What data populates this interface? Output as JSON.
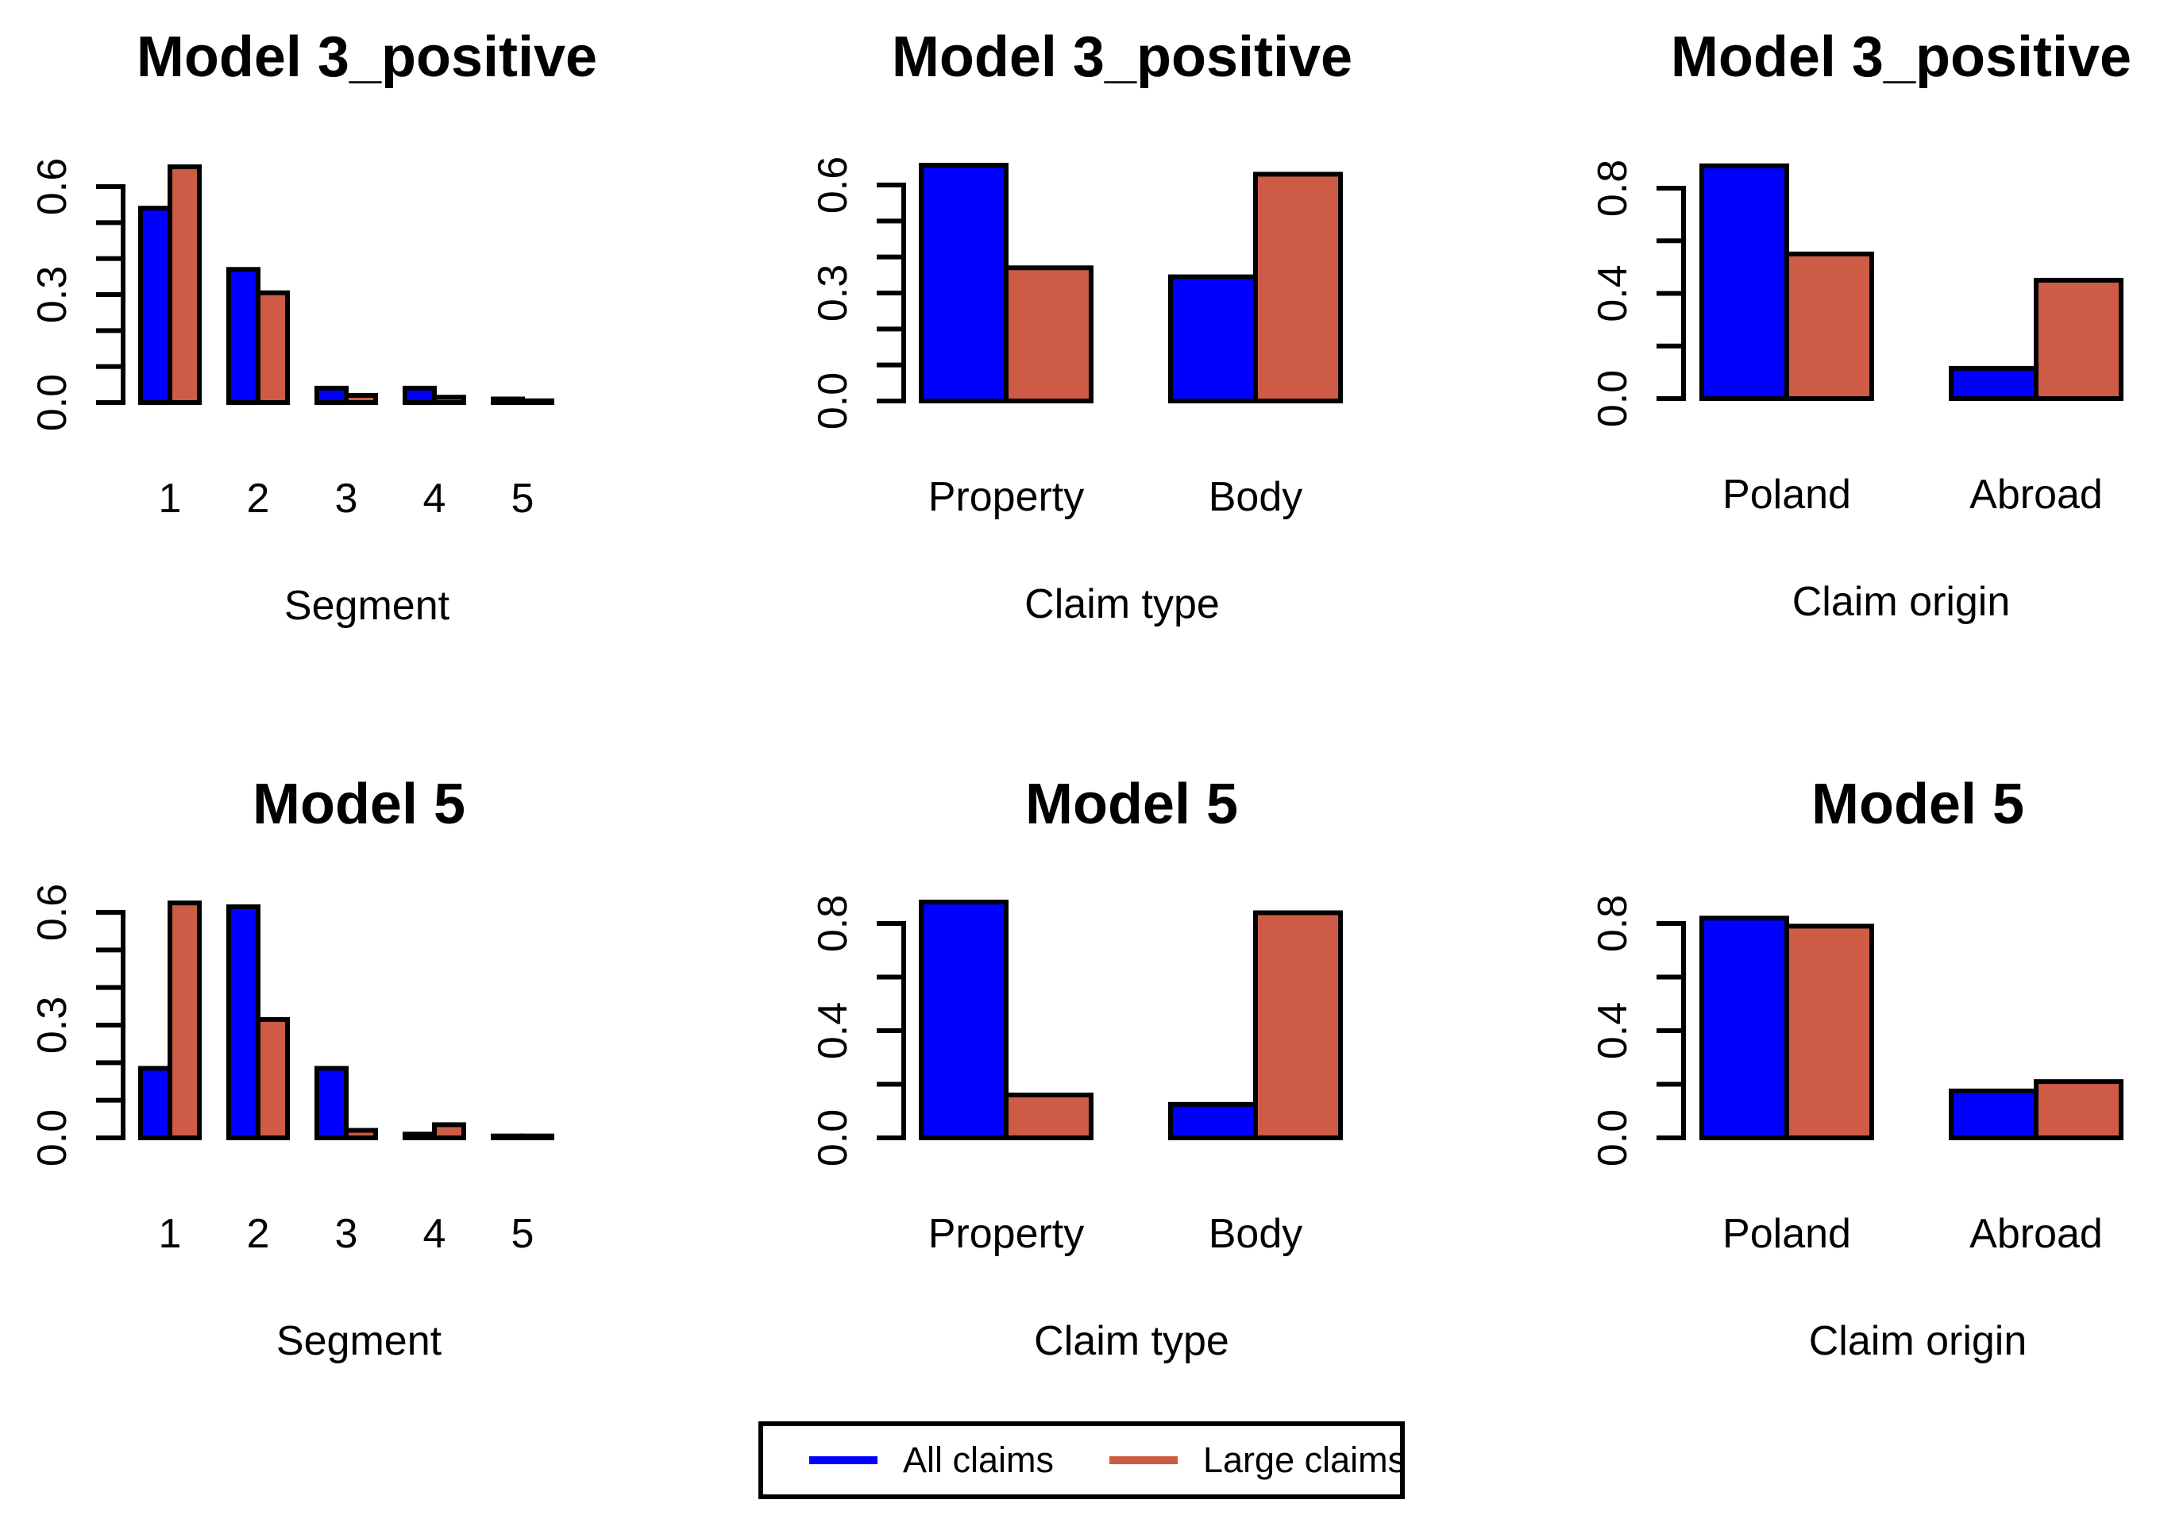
{
  "colors": {
    "all_claims": "#0000FF",
    "large_claims": "#CD5B45",
    "axis": "#000000",
    "background": "#FFFFFF"
  },
  "legend": {
    "items": [
      {
        "label": "All claims",
        "color": "#0000FF"
      },
      {
        "label": "Large claims",
        "color": "#CD5B45"
      }
    ]
  },
  "chart_data": [
    {
      "id": "model3-positive-segment",
      "type": "bar",
      "title": "Model 3_positive",
      "xlabel": "Segment",
      "categories": [
        "1",
        "2",
        "3",
        "4",
        "5"
      ],
      "series": [
        {
          "name": "All claims",
          "color": "#0000FF",
          "values": [
            0.54,
            0.37,
            0.04,
            0.04,
            0.01
          ]
        },
        {
          "name": "Large claims",
          "color": "#CD5B45",
          "values": [
            0.655,
            0.305,
            0.02,
            0.015,
            0.005
          ]
        }
      ],
      "ylim": [
        0,
        0.6
      ],
      "y_tick_step": 0.1,
      "y_labeled_ticks": [
        {
          "value": 0,
          "label": "0.0"
        },
        {
          "value": 0.3,
          "label": "0.3"
        },
        {
          "value": 0.6,
          "label": "0.6"
        }
      ],
      "grid": false,
      "legend_position": "none"
    },
    {
      "id": "model3-positive-claim-type",
      "type": "bar",
      "title": "Model 3_positive",
      "xlabel": "Claim type",
      "categories": [
        "Property",
        "Body"
      ],
      "series": [
        {
          "name": "All claims",
          "color": "#0000FF",
          "values": [
            0.655,
            0.345
          ]
        },
        {
          "name": "Large claims",
          "color": "#CD5B45",
          "values": [
            0.37,
            0.63
          ]
        }
      ],
      "ylim": [
        0,
        0.6
      ],
      "y_tick_step": 0.1,
      "y_labeled_ticks": [
        {
          "value": 0,
          "label": "0.0"
        },
        {
          "value": 0.3,
          "label": "0.3"
        },
        {
          "value": 0.6,
          "label": "0.6"
        }
      ],
      "grid": false,
      "legend_position": "none"
    },
    {
      "id": "model3-positive-claim-origin",
      "type": "bar",
      "title": "Model 3_positive",
      "xlabel": "Claim origin",
      "categories": [
        "Poland",
        "Abroad"
      ],
      "series": [
        {
          "name": "All claims",
          "color": "#0000FF",
          "values": [
            0.885,
            0.115
          ]
        },
        {
          "name": "Large claims",
          "color": "#CD5B45",
          "values": [
            0.55,
            0.45
          ]
        }
      ],
      "ylim": [
        0,
        0.8
      ],
      "y_tick_step": 0.2,
      "y_labeled_ticks": [
        {
          "value": 0,
          "label": "0.0"
        },
        {
          "value": 0.4,
          "label": "0.4"
        },
        {
          "value": 0.8,
          "label": "0.8"
        }
      ],
      "grid": false,
      "legend_position": "none"
    },
    {
      "id": "model5-segment",
      "type": "bar",
      "title": "Model 5",
      "xlabel": "Segment",
      "categories": [
        "1",
        "2",
        "3",
        "4",
        "5"
      ],
      "series": [
        {
          "name": "All claims",
          "color": "#0000FF",
          "values": [
            0.185,
            0.615,
            0.185,
            0.01,
            0.005
          ]
        },
        {
          "name": "Large claims",
          "color": "#CD5B45",
          "values": [
            0.625,
            0.315,
            0.02,
            0.035,
            0.005
          ]
        }
      ],
      "ylim": [
        0,
        0.6
      ],
      "y_tick_step": 0.1,
      "y_labeled_ticks": [
        {
          "value": 0,
          "label": "0.0"
        },
        {
          "value": 0.3,
          "label": "0.3"
        },
        {
          "value": 0.6,
          "label": "0.6"
        }
      ],
      "grid": false,
      "legend_position": "none"
    },
    {
      "id": "model5-claim-type",
      "type": "bar",
      "title": "Model 5",
      "xlabel": "Claim type",
      "categories": [
        "Property",
        "Body"
      ],
      "series": [
        {
          "name": "All claims",
          "color": "#0000FF",
          "values": [
            0.88,
            0.125
          ]
        },
        {
          "name": "Large claims",
          "color": "#CD5B45",
          "values": [
            0.16,
            0.84
          ]
        }
      ],
      "ylim": [
        0,
        0.8
      ],
      "y_tick_step": 0.2,
      "y_labeled_ticks": [
        {
          "value": 0,
          "label": "0.0"
        },
        {
          "value": 0.4,
          "label": "0.4"
        },
        {
          "value": 0.8,
          "label": "0.8"
        }
      ],
      "grid": false,
      "legend_position": "none"
    },
    {
      "id": "model5-claim-origin",
      "type": "bar",
      "title": "Model 5",
      "xlabel": "Claim origin",
      "categories": [
        "Poland",
        "Abroad"
      ],
      "series": [
        {
          "name": "All claims",
          "color": "#0000FF",
          "values": [
            0.82,
            0.175
          ]
        },
        {
          "name": "Large claims",
          "color": "#CD5B45",
          "values": [
            0.79,
            0.21
          ]
        }
      ],
      "ylim": [
        0,
        0.8
      ],
      "y_tick_step": 0.2,
      "y_labeled_ticks": [
        {
          "value": 0,
          "label": "0.0"
        },
        {
          "value": 0.4,
          "label": "0.4"
        },
        {
          "value": 0.8,
          "label": "0.8"
        }
      ],
      "grid": false,
      "legend_position": "none"
    }
  ]
}
